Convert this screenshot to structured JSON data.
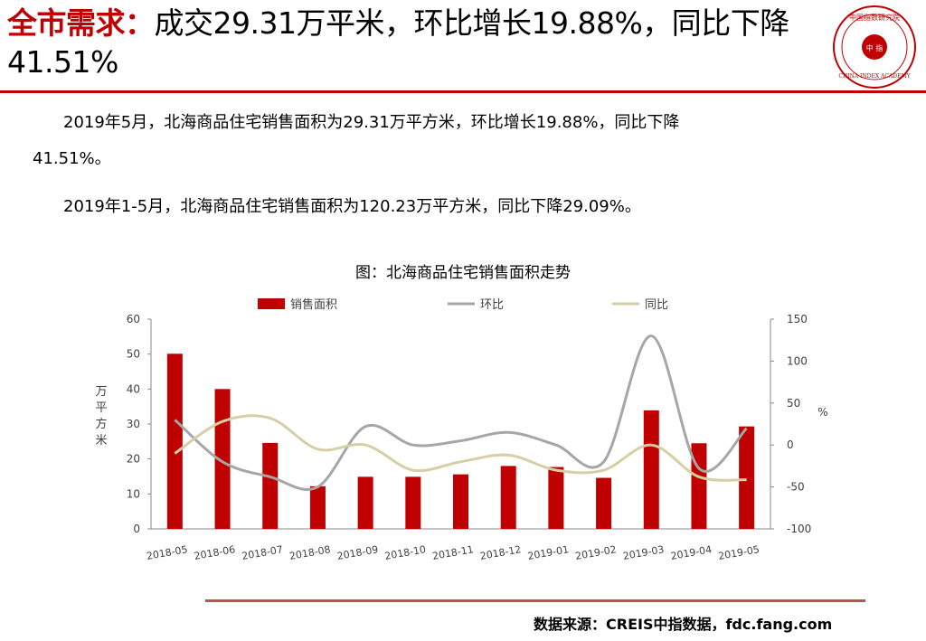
{
  "header": {
    "title_highlight": "全市需求：",
    "title_rest": "成交29.31万平米，环比增长19.88%，同比下降41.51%",
    "logo_top_text": "中国指数研究院",
    "logo_center_text": "中 指",
    "logo_bottom_text": "CHINA INDEX ACADEMY"
  },
  "body": {
    "para1_line1": "2019年5月，北海商品住宅销售面积为29.31万平方米，环比增长19.88%，同比下降",
    "para1_line2": "41.51%。",
    "para2": "2019年1-5月，北海商品住宅销售面积为120.23万平方米，同比下降29.09%。"
  },
  "chart_caption": "图：北海商品住宅销售面积走势",
  "footer": {
    "source": "数据来源：CREIS中指数据，fdc.fang.com"
  },
  "colors": {
    "bar": "#c00000",
    "mom_line": "#a6a6a6",
    "yoy_line": "#d6cfa5",
    "accent": "#c00000"
  },
  "chart_data": {
    "type": "bar",
    "categories": [
      "2018-05",
      "2018-06",
      "2018-07",
      "2018-08",
      "2018-09",
      "2018-10",
      "2018-11",
      "2018-12",
      "2019-01",
      "2019-02",
      "2019-03",
      "2019-04",
      "2019-05"
    ],
    "series": [
      {
        "name": "销售面积",
        "type": "bar",
        "axis": "left",
        "values": [
          50.1,
          40.0,
          24.6,
          12.2,
          14.9,
          14.9,
          15.6,
          18.0,
          17.7,
          14.6,
          33.9,
          24.5,
          29.31
        ]
      },
      {
        "name": "环比",
        "type": "line",
        "axis": "right",
        "values": [
          30,
          -20,
          -38,
          -50,
          22,
          0,
          5,
          15,
          0,
          -20,
          130,
          -28,
          19.88
        ]
      },
      {
        "name": "同比",
        "type": "line",
        "axis": "right",
        "values": [
          -10,
          28,
          32,
          -5,
          0,
          -30,
          -20,
          -12,
          -30,
          -30,
          0,
          -38,
          -41.51
        ]
      }
    ],
    "ylabel": "万平方米",
    "y2label": "%",
    "ylim": [
      0,
      60
    ],
    "yticks": [
      0,
      10,
      20,
      30,
      40,
      50,
      60
    ],
    "y2lim": [
      -100,
      150
    ],
    "y2ticks": [
      -100,
      -50,
      0,
      50,
      100,
      150
    ],
    "legend_position": "top",
    "grid": false
  }
}
